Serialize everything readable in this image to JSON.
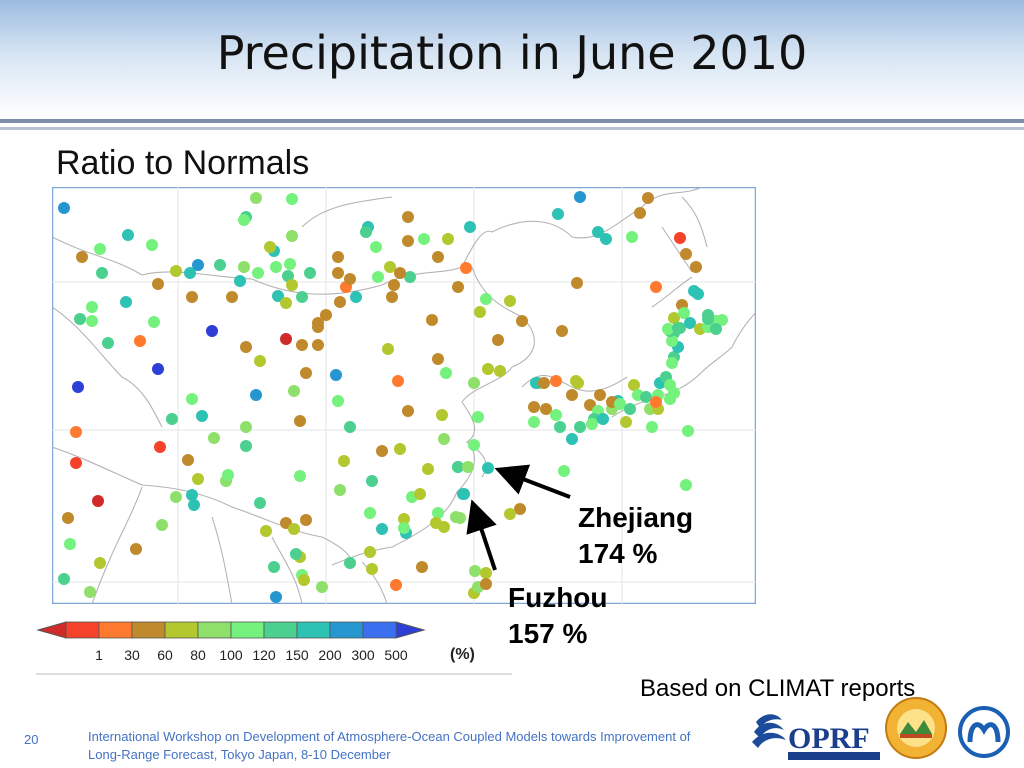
{
  "slide": {
    "title": "Precipitation in June 2010",
    "subtitle": "Ratio to Normals",
    "source_note": "Based on CLIMAT reports",
    "slide_number": "20",
    "footer_line1": "International Workshop on Development of Atmosphere-Ocean Coupled Models towards Improvement of",
    "footer_line2": "Long-Range Forecast, Tokyo Japan, 8-10 December"
  },
  "callouts": {
    "zhejiang_name": "Zhejiang",
    "zhejiang_value": "174 %",
    "fuzhou_name": "Fuzhou",
    "fuzhou_value": "157 %"
  },
  "legend": {
    "unit": "(%)",
    "ticks": [
      "1",
      "30",
      "60",
      "80",
      "100",
      "120",
      "150",
      "200",
      "300",
      "500"
    ],
    "colors": [
      "#d02a2a",
      "#f4432a",
      "#ff7a2e",
      "#c08a2c",
      "#b3c82e",
      "#8ee06a",
      "#75f27e",
      "#4bd08f",
      "#2ec2b4",
      "#2596cf",
      "#3a6ff0",
      "#2d3fd6"
    ]
  },
  "logos": {
    "oprf_text": "OPRF"
  }
}
